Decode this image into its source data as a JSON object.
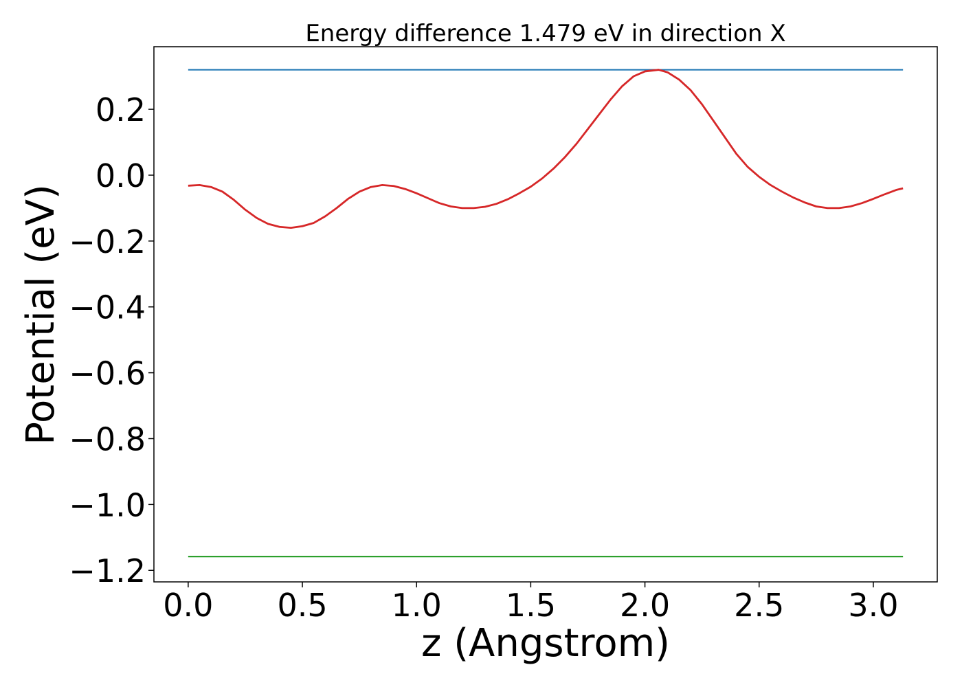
{
  "chart_data": {
    "type": "line",
    "title": "Energy difference 1.479 eV in direction X",
    "xlabel": "z (Angstrom)",
    "ylabel": "Potential (eV)",
    "xlim": [
      -0.15,
      3.28
    ],
    "ylim": [
      -1.235,
      0.39
    ],
    "grid": false,
    "xticks": [
      0.0,
      0.5,
      1.0,
      1.5,
      2.0,
      2.5,
      3.0
    ],
    "xtick_labels": [
      "0.0",
      "0.5",
      "1.0",
      "1.5",
      "2.0",
      "2.5",
      "3.0"
    ],
    "yticks": [
      0.2,
      0.0,
      -0.2,
      -0.4,
      -0.6,
      -0.8,
      -1.0,
      -1.2
    ],
    "ytick_labels": [
      "0.2",
      "0.0",
      "−0.2",
      "−0.4",
      "−0.6",
      "−0.8",
      "−1.0",
      "−1.2"
    ],
    "series": [
      {
        "color": "#1f77b4",
        "x": [
          0.0,
          3.13
        ],
        "y": [
          0.32,
          0.32
        ]
      },
      {
        "color": "#2ca02c",
        "x": [
          0.0,
          3.13
        ],
        "y": [
          -1.158,
          -1.158
        ]
      },
      {
        "color": "#d62728",
        "x": [
          0.0,
          0.05,
          0.1,
          0.15,
          0.2,
          0.25,
          0.3,
          0.35,
          0.4,
          0.45,
          0.5,
          0.55,
          0.6,
          0.65,
          0.7,
          0.75,
          0.8,
          0.85,
          0.9,
          0.95,
          1.0,
          1.05,
          1.1,
          1.15,
          1.2,
          1.25,
          1.3,
          1.35,
          1.4,
          1.45,
          1.5,
          1.55,
          1.6,
          1.65,
          1.7,
          1.75,
          1.8,
          1.85,
          1.9,
          1.95,
          2.0,
          2.06,
          2.1,
          2.15,
          2.2,
          2.25,
          2.3,
          2.35,
          2.4,
          2.45,
          2.5,
          2.55,
          2.6,
          2.65,
          2.7,
          2.75,
          2.8,
          2.85,
          2.9,
          2.95,
          3.0,
          3.05,
          3.1,
          3.13
        ],
        "y": [
          -0.032,
          -0.03,
          -0.036,
          -0.05,
          -0.075,
          -0.105,
          -0.13,
          -0.148,
          -0.157,
          -0.16,
          -0.155,
          -0.145,
          -0.125,
          -0.1,
          -0.072,
          -0.05,
          -0.036,
          -0.03,
          -0.033,
          -0.042,
          -0.055,
          -0.07,
          -0.085,
          -0.095,
          -0.1,
          -0.1,
          -0.096,
          -0.087,
          -0.073,
          -0.055,
          -0.035,
          -0.01,
          0.02,
          0.055,
          0.095,
          0.14,
          0.185,
          0.23,
          0.27,
          0.3,
          0.315,
          0.32,
          0.312,
          0.29,
          0.258,
          0.215,
          0.165,
          0.115,
          0.065,
          0.025,
          -0.005,
          -0.03,
          -0.05,
          -0.068,
          -0.083,
          -0.095,
          -0.1,
          -0.1,
          -0.095,
          -0.085,
          -0.072,
          -0.058,
          -0.045,
          -0.04
        ]
      }
    ]
  }
}
